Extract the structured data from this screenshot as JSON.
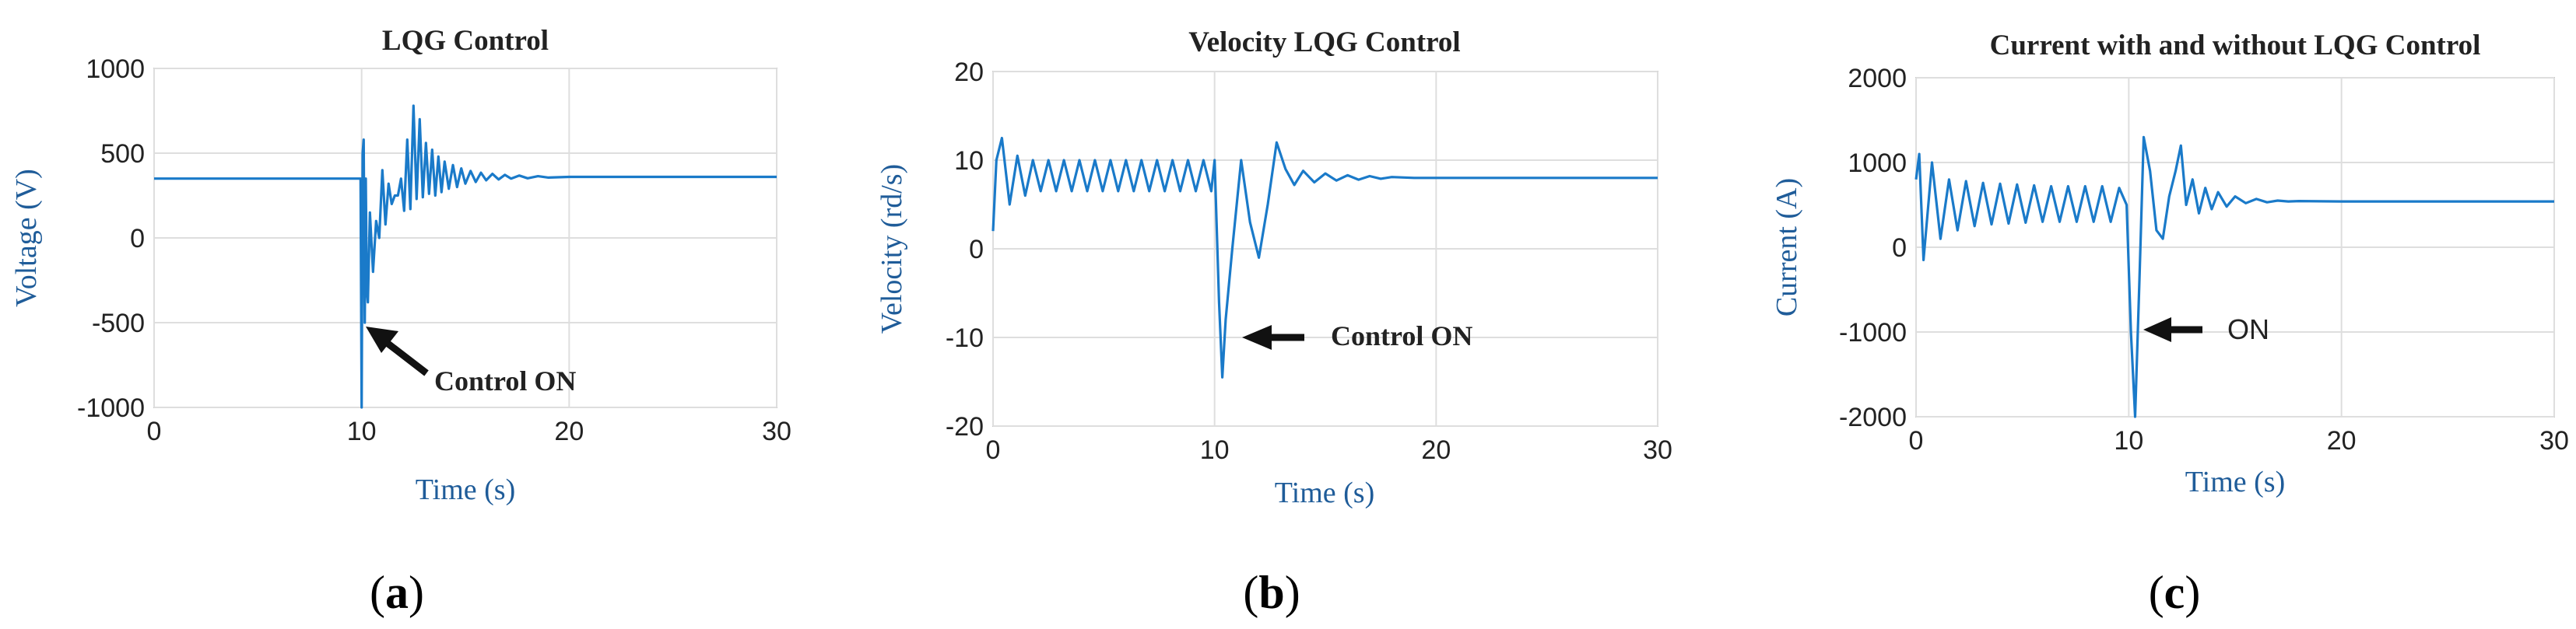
{
  "chart_data": [
    {
      "type": "line",
      "panel": "a",
      "caption_letter": "a",
      "title": "LQG Control",
      "xlabel": "Time (s)",
      "ylabel": "Voltage (V)",
      "xlim": [
        0,
        30
      ],
      "ylim": [
        -1000,
        1000
      ],
      "xticks": [
        0,
        10,
        20,
        30
      ],
      "yticks": [
        1000,
        500,
        0,
        -500,
        -1000
      ],
      "xtick_labels": [
        "0",
        "10",
        "20",
        "30"
      ],
      "ytick_labels": [
        "1000",
        "500",
        "0",
        "-500",
        "-1000"
      ],
      "grid": true,
      "color": "#1a7ac9",
      "annotation": {
        "text": "Control ON",
        "arrow_to": [
          10,
          -540
        ],
        "text_at": [
          13.5,
          -800
        ]
      },
      "series": [
        {
          "name": "Voltage",
          "x": [
            0,
            9.95,
            10.0,
            10.05,
            10.1,
            10.15,
            10.2,
            10.25,
            10.3,
            10.4,
            10.55,
            10.7,
            10.85,
            11.0,
            11.15,
            11.3,
            11.45,
            11.6,
            11.75,
            11.9,
            12.05,
            12.2,
            12.35,
            12.5,
            12.65,
            12.8,
            12.95,
            13.1,
            13.25,
            13.4,
            13.55,
            13.7,
            13.85,
            14.0,
            14.2,
            14.4,
            14.6,
            14.8,
            15.0,
            15.25,
            15.5,
            15.75,
            16.0,
            16.3,
            16.6,
            16.9,
            17.2,
            17.6,
            18.0,
            18.5,
            19.0,
            20.0,
            22.0,
            25.0,
            30.0
          ],
          "values": [
            350,
            350,
            -1000,
            500,
            580,
            -500,
            350,
            -300,
            -380,
            150,
            -200,
            100,
            0,
            400,
            80,
            320,
            200,
            250,
            250,
            350,
            160,
            580,
            170,
            780,
            230,
            700,
            240,
            560,
            260,
            520,
            250,
            480,
            270,
            450,
            290,
            430,
            300,
            410,
            320,
            395,
            330,
            385,
            340,
            378,
            345,
            372,
            350,
            368,
            352,
            364,
            356,
            360,
            360,
            360,
            360
          ]
        }
      ]
    },
    {
      "type": "line",
      "panel": "b",
      "caption_letter": "b",
      "title": "Velocity LQG Control",
      "xlabel": "Time (s)",
      "ylabel": "Velocity (rd/s)",
      "xlim": [
        0,
        30
      ],
      "ylim": [
        -20,
        20
      ],
      "xticks": [
        0,
        10,
        20,
        30
      ],
      "yticks": [
        20,
        10,
        0,
        -10,
        -20
      ],
      "xtick_labels": [
        "0",
        "10",
        "20",
        "30"
      ],
      "ytick_labels": [
        "20",
        "10",
        "0",
        "-10",
        "-20"
      ],
      "grid": true,
      "color": "#1a7ac9",
      "annotation": {
        "text": "Control ON",
        "arrow_to": [
          11.0,
          -10
        ],
        "text_at": [
          15.5,
          -9
        ]
      },
      "series": [
        {
          "name": "Velocity",
          "x": [
            0,
            0.15,
            0.4,
            0.75,
            1.1,
            1.45,
            1.8,
            2.15,
            2.5,
            2.85,
            3.2,
            3.55,
            3.9,
            4.25,
            4.6,
            4.95,
            5.3,
            5.65,
            6.0,
            6.35,
            6.7,
            7.05,
            7.4,
            7.75,
            8.1,
            8.45,
            8.8,
            9.15,
            9.5,
            9.85,
            10.0,
            10.2,
            10.35,
            10.5,
            10.8,
            11.2,
            11.6,
            12.0,
            12.4,
            12.8,
            13.2,
            13.6,
            14.0,
            14.5,
            15.0,
            15.5,
            16.0,
            16.5,
            17.0,
            17.5,
            18.0,
            19.0,
            20.0,
            22.0,
            25.0,
            30.0
          ],
          "values": [
            2,
            10,
            12.5,
            5,
            10.5,
            6,
            10,
            6.5,
            10,
            6.5,
            10,
            6.5,
            10,
            6.5,
            10,
            6.5,
            10,
            6.5,
            10,
            6.5,
            10,
            6.5,
            10,
            6.5,
            10,
            6.5,
            10,
            6.5,
            10,
            6.5,
            10,
            -6,
            -14.5,
            -8,
            0,
            10,
            3,
            -1,
            5,
            12,
            9,
            7.2,
            8.8,
            7.5,
            8.5,
            7.7,
            8.3,
            7.8,
            8.2,
            7.9,
            8.1,
            8,
            8,
            8,
            8,
            8
          ]
        }
      ]
    },
    {
      "type": "line",
      "panel": "c",
      "caption_letter": "c",
      "title": "Current with and without LQG Control",
      "xlabel": "Time (s)",
      "ylabel": "Current (A)",
      "xlim": [
        0,
        30
      ],
      "ylim": [
        -2000,
        2000
      ],
      "xticks": [
        0,
        10,
        20,
        30
      ],
      "yticks": [
        2000,
        1000,
        0,
        -1000,
        -2000
      ],
      "xtick_labels": [
        "0",
        "10",
        "20",
        "30"
      ],
      "ytick_labels": [
        "2000",
        "1000",
        "0",
        "-1000",
        "-2000"
      ],
      "grid": true,
      "color": "#1a7ac9",
      "annotation": {
        "text": "ON",
        "arrow_to": [
          10.8,
          -1000
        ],
        "text_at": [
          14.5,
          -1000
        ]
      },
      "series": [
        {
          "name": "Current",
          "x": [
            0,
            0.15,
            0.35,
            0.75,
            1.15,
            1.55,
            1.95,
            2.35,
            2.75,
            3.15,
            3.55,
            3.95,
            4.35,
            4.75,
            5.15,
            5.55,
            5.95,
            6.35,
            6.75,
            7.15,
            7.55,
            7.95,
            8.35,
            8.75,
            9.15,
            9.55,
            9.9,
            10.1,
            10.3,
            10.5,
            10.7,
            11.0,
            11.3,
            11.6,
            11.9,
            12.2,
            12.45,
            12.7,
            13.0,
            13.3,
            13.6,
            13.9,
            14.2,
            14.6,
            15.0,
            15.5,
            16.0,
            16.5,
            17.0,
            17.5,
            18.0,
            20.0,
            25.0,
            30.0
          ],
          "values": [
            800,
            1100,
            -150,
            1000,
            100,
            800,
            200,
            780,
            250,
            760,
            270,
            750,
            280,
            740,
            290,
            730,
            300,
            720,
            300,
            720,
            300,
            720,
            300,
            720,
            300,
            700,
            500,
            -1000,
            -2000,
            -400,
            1300,
            900,
            200,
            100,
            600,
            900,
            1200,
            500,
            800,
            400,
            700,
            450,
            650,
            480,
            600,
            520,
            570,
            530,
            550,
            540,
            545,
            540,
            540,
            540
          ]
        }
      ]
    }
  ]
}
